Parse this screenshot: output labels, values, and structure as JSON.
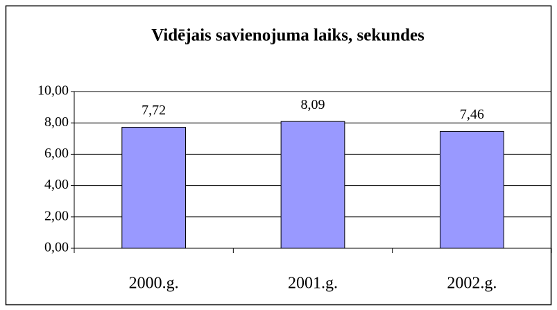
{
  "chart_data": {
    "type": "bar",
    "title": "Vidējais savienojuma laiks, sekundes",
    "categories": [
      "2000.g.",
      "2001.g.",
      "2002.g."
    ],
    "values": [
      7.72,
      8.09,
      7.46
    ],
    "value_labels": [
      "7,72",
      "8,09",
      "7,46"
    ],
    "color": "#9999ff",
    "ylim": [
      0,
      10
    ],
    "yticks": [
      {
        "value": 0,
        "label": "0,00"
      },
      {
        "value": 2,
        "label": "2,00"
      },
      {
        "value": 4,
        "label": "4,00"
      },
      {
        "value": 6,
        "label": "6,00"
      },
      {
        "value": 8,
        "label": "8,00"
      },
      {
        "value": 10,
        "label": "10,00"
      }
    ],
    "grid": true
  }
}
